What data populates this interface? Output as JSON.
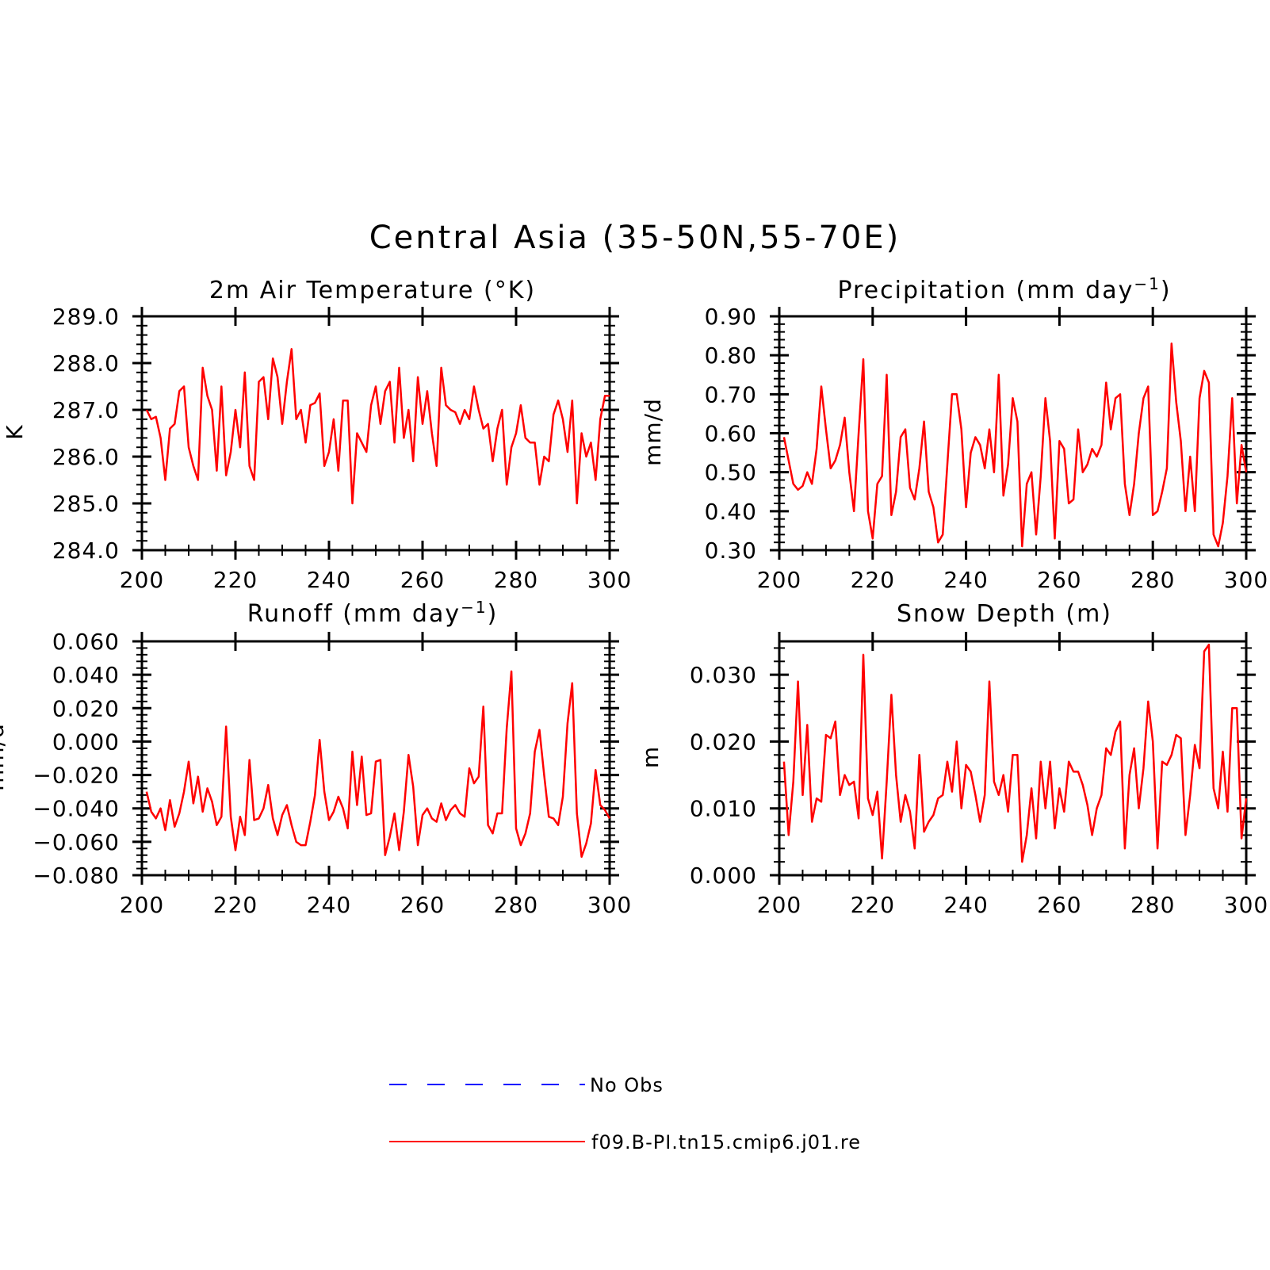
{
  "main_title": "Central Asia (35-50N,55-70E)",
  "legend": {
    "items": [
      {
        "label": "No Obs",
        "color": "#0000ff",
        "dash": true
      },
      {
        "label": "f09.B-PI.tn15.cmip6.j01.re",
        "color": "#ff0000",
        "dash": false
      }
    ]
  },
  "chart_data": [
    {
      "type": "line",
      "title": "2m Air Temperature (°K)",
      "xlabel": "",
      "ylabel": "K",
      "xlim": [
        200,
        300
      ],
      "ylim": [
        284.0,
        289.0
      ],
      "x_ticks": [
        200,
        220,
        240,
        260,
        280,
        300
      ],
      "x_tick_labels": [
        "200",
        "220",
        "240",
        "260",
        "280",
        "300"
      ],
      "y_ticks": [
        284.0,
        285.0,
        286.0,
        287.0,
        288.0,
        289.0
      ],
      "y_tick_labels": [
        "284.0",
        "285.0",
        "286.0",
        "287.0",
        "288.0",
        "289.0"
      ],
      "x_start": 201,
      "series": [
        {
          "name": "f09.B-PI.tn15.cmip6.j01.re",
          "color": "#ff0000",
          "values": [
            287.0,
            286.8,
            286.85,
            286.4,
            285.5,
            286.6,
            286.7,
            287.4,
            287.5,
            286.2,
            285.8,
            285.5,
            287.9,
            287.3,
            287.0,
            285.7,
            287.5,
            285.6,
            286.1,
            287.0,
            286.2,
            287.8,
            285.8,
            285.5,
            287.6,
            287.7,
            286.8,
            288.1,
            287.7,
            286.7,
            287.6,
            288.3,
            286.8,
            287.0,
            286.3,
            287.1,
            287.15,
            287.35,
            285.8,
            286.1,
            286.8,
            285.7,
            287.2,
            287.2,
            285.0,
            286.5,
            286.3,
            286.1,
            287.1,
            287.5,
            286.7,
            287.4,
            287.6,
            286.3,
            287.9,
            286.4,
            287.0,
            285.9,
            287.7,
            286.7,
            287.4,
            286.5,
            285.8,
            287.9,
            287.1,
            287.0,
            286.95,
            286.7,
            287.0,
            286.8,
            287.5,
            287.0,
            286.6,
            286.7,
            285.9,
            286.6,
            287.0,
            285.4,
            286.2,
            286.5,
            287.1,
            286.4,
            286.3,
            286.3,
            285.4,
            286.0,
            285.9,
            286.9,
            287.2,
            286.8,
            286.1,
            287.2,
            285.0,
            286.5,
            286.0,
            286.3,
            285.5,
            286.8,
            287.3,
            287.3
          ]
        }
      ]
    },
    {
      "type": "line",
      "title": "Precipitation (mm day-1)",
      "xlabel": "",
      "ylabel": "mm/d",
      "xlim": [
        200,
        300
      ],
      "ylim": [
        0.3,
        0.9
      ],
      "x_ticks": [
        200,
        220,
        240,
        260,
        280,
        300
      ],
      "x_tick_labels": [
        "200",
        "220",
        "240",
        "260",
        "280",
        "300"
      ],
      "y_ticks": [
        0.3,
        0.4,
        0.5,
        0.6,
        0.7,
        0.8,
        0.9
      ],
      "y_tick_labels": [
        "0.30",
        "0.40",
        "0.50",
        "0.60",
        "0.70",
        "0.80",
        "0.90"
      ],
      "x_start": 201,
      "series": [
        {
          "name": "f09.B-PI.tn15.cmip6.j01.re",
          "color": "#ff0000",
          "values": [
            0.59,
            0.53,
            0.47,
            0.455,
            0.465,
            0.5,
            0.47,
            0.56,
            0.72,
            0.61,
            0.51,
            0.53,
            0.57,
            0.64,
            0.5,
            0.4,
            0.6,
            0.79,
            0.4,
            0.33,
            0.47,
            0.49,
            0.75,
            0.39,
            0.45,
            0.59,
            0.61,
            0.46,
            0.43,
            0.51,
            0.63,
            0.45,
            0.41,
            0.32,
            0.34,
            0.52,
            0.7,
            0.7,
            0.61,
            0.41,
            0.55,
            0.59,
            0.57,
            0.51,
            0.61,
            0.5,
            0.75,
            0.44,
            0.52,
            0.69,
            0.63,
            0.31,
            0.47,
            0.5,
            0.34,
            0.49,
            0.69,
            0.58,
            0.33,
            0.58,
            0.56,
            0.42,
            0.43,
            0.61,
            0.5,
            0.52,
            0.56,
            0.54,
            0.57,
            0.73,
            0.61,
            0.69,
            0.7,
            0.47,
            0.39,
            0.47,
            0.6,
            0.69,
            0.72,
            0.39,
            0.4,
            0.45,
            0.51,
            0.83,
            0.68,
            0.58,
            0.4,
            0.54,
            0.4,
            0.69,
            0.76,
            0.73,
            0.34,
            0.31,
            0.37,
            0.49,
            0.69,
            0.42,
            0.57,
            0.5
          ]
        }
      ]
    },
    {
      "type": "line",
      "title": "Runoff (mm day-1)",
      "xlabel": "",
      "ylabel": "mm/d",
      "xlim": [
        200,
        300
      ],
      "ylim": [
        -0.08,
        0.06
      ],
      "x_ticks": [
        200,
        220,
        240,
        260,
        280,
        300
      ],
      "x_tick_labels": [
        "200",
        "220",
        "240",
        "260",
        "280",
        "300"
      ],
      "y_ticks": [
        -0.08,
        -0.06,
        -0.04,
        -0.02,
        0.0,
        0.02,
        0.04,
        0.06
      ],
      "y_tick_labels": [
        "-0.080",
        "-0.060",
        "-0.040",
        "-0.020",
        "0.000",
        "0.020",
        "0.040",
        "0.060"
      ],
      "x_start": 201,
      "series": [
        {
          "name": "f09.B-PI.tn15.cmip6.j01.re",
          "color": "#ff0000",
          "values": [
            -0.03,
            -0.042,
            -0.046,
            -0.04,
            -0.053,
            -0.035,
            -0.051,
            -0.043,
            -0.03,
            -0.012,
            -0.037,
            -0.021,
            -0.042,
            -0.028,
            -0.036,
            -0.05,
            -0.045,
            0.009,
            -0.045,
            -0.065,
            -0.045,
            -0.056,
            -0.011,
            -0.047,
            -0.046,
            -0.04,
            -0.026,
            -0.046,
            -0.056,
            -0.044,
            -0.038,
            -0.05,
            -0.06,
            -0.062,
            -0.062,
            -0.048,
            -0.032,
            0.001,
            -0.03,
            -0.047,
            -0.042,
            -0.033,
            -0.04,
            -0.052,
            -0.006,
            -0.038,
            -0.009,
            -0.044,
            -0.043,
            -0.012,
            -0.011,
            -0.068,
            -0.057,
            -0.043,
            -0.065,
            -0.042,
            -0.008,
            -0.027,
            -0.062,
            -0.044,
            -0.04,
            -0.046,
            -0.048,
            -0.037,
            -0.047,
            -0.041,
            -0.038,
            -0.043,
            -0.045,
            -0.016,
            -0.025,
            -0.021,
            0.021,
            -0.05,
            -0.055,
            -0.043,
            -0.043,
            0.008,
            0.042,
            -0.052,
            -0.062,
            -0.055,
            -0.043,
            -0.006,
            0.007,
            -0.02,
            -0.045,
            -0.046,
            -0.05,
            -0.033,
            0.011,
            0.035,
            -0.043,
            -0.069,
            -0.061,
            -0.049,
            -0.017,
            -0.038,
            -0.041,
            -0.046
          ]
        }
      ]
    },
    {
      "type": "line",
      "title": "Snow Depth (m)",
      "xlabel": "",
      "ylabel": "m",
      "xlim": [
        200,
        300
      ],
      "ylim": [
        0.0,
        0.035
      ],
      "x_ticks": [
        200,
        220,
        240,
        260,
        280,
        300
      ],
      "x_tick_labels": [
        "200",
        "220",
        "240",
        "260",
        "280",
        "300"
      ],
      "y_ticks": [
        0.0,
        0.01,
        0.02,
        0.03
      ],
      "y_tick_labels": [
        "0.000",
        "0.010",
        "0.020",
        "0.030"
      ],
      "x_start": 201,
      "series": [
        {
          "name": "f09.B-PI.tn15.cmip6.j01.re",
          "color": "#ff0000",
          "values": [
            0.017,
            0.006,
            0.014,
            0.029,
            0.012,
            0.0225,
            0.008,
            0.0115,
            0.011,
            0.021,
            0.0205,
            0.023,
            0.012,
            0.015,
            0.0135,
            0.014,
            0.0085,
            0.033,
            0.0115,
            0.009,
            0.0125,
            0.0025,
            0.014,
            0.027,
            0.015,
            0.008,
            0.012,
            0.0095,
            0.004,
            0.018,
            0.0065,
            0.008,
            0.009,
            0.0115,
            0.012,
            0.017,
            0.0125,
            0.02,
            0.01,
            0.0165,
            0.0155,
            0.012,
            0.008,
            0.012,
            0.029,
            0.014,
            0.012,
            0.015,
            0.0095,
            0.018,
            0.018,
            0.002,
            0.006,
            0.013,
            0.0055,
            0.017,
            0.01,
            0.017,
            0.007,
            0.013,
            0.0095,
            0.017,
            0.0155,
            0.0155,
            0.0135,
            0.0105,
            0.006,
            0.01,
            0.012,
            0.019,
            0.018,
            0.0215,
            0.023,
            0.004,
            0.015,
            0.019,
            0.01,
            0.016,
            0.026,
            0.02,
            0.004,
            0.017,
            0.0165,
            0.018,
            0.021,
            0.0205,
            0.006,
            0.012,
            0.0195,
            0.016,
            0.0335,
            0.0345,
            0.013,
            0.01,
            0.0185,
            0.0095,
            0.025,
            0.025,
            0.0055,
            0.0115
          ]
        }
      ]
    }
  ]
}
